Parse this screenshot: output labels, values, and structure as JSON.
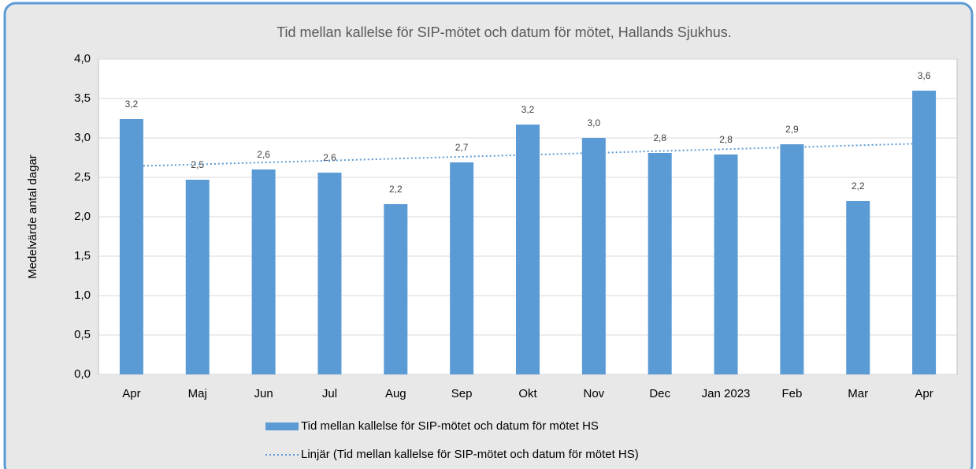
{
  "chart_data": {
    "type": "bar",
    "title": "Tid mellan kallelse för SIP-mötet och datum för mötet, Hallands Sjukhus.",
    "ylabel": "Medelvärde antal dagar",
    "categories": [
      "Apr",
      "Maj",
      "Jun",
      "Jul",
      "Aug",
      "Sep",
      "Okt",
      "Nov",
      "Dec",
      "Jan 2023",
      "Feb",
      "Mar",
      "Apr"
    ],
    "series": [
      {
        "name": "Tid mellan kallelse för SIP-mötet och datum för mötet HS",
        "color": "#5b9bd5",
        "values": [
          3.24,
          2.47,
          2.6,
          2.56,
          2.16,
          2.69,
          3.17,
          3.0,
          2.81,
          2.79,
          2.92,
          2.2,
          3.6
        ],
        "value_labels": [
          "3,2",
          "2,5",
          "2,6",
          "2,6",
          "2,2",
          "2,7",
          "3,2",
          "3,0",
          "2,8",
          "2,8",
          "2,9",
          "2,2",
          "3,6"
        ]
      },
      {
        "name": "Linjär (Tid mellan kallelse för SIP-mötet och datum för mötet HS)",
        "color": "#5b9bd5",
        "trendline": "linear"
      }
    ],
    "ylim": [
      0,
      4
    ],
    "yticks": [
      {
        "value": 0,
        "label": "0,0"
      },
      {
        "value": 0.5,
        "label": "0,5"
      },
      {
        "value": 1,
        "label": "1,0"
      },
      {
        "value": 1.5,
        "label": "1,5"
      },
      {
        "value": 2,
        "label": "2,0"
      },
      {
        "value": 2.5,
        "label": "2,5"
      },
      {
        "value": 3,
        "label": "3,0"
      },
      {
        "value": 3.5,
        "label": "3,5"
      },
      {
        "value": 4,
        "label": "4,0"
      }
    ],
    "grid": true,
    "legend": "bottom"
  }
}
